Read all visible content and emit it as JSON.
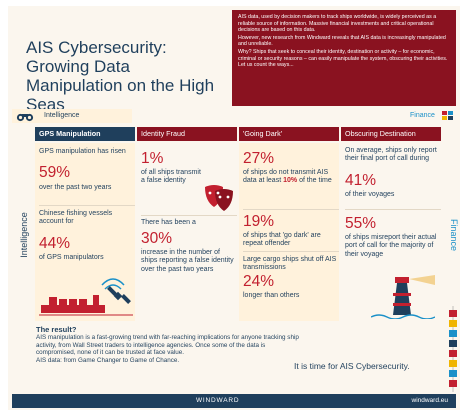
{
  "header": {
    "title": "AIS Cybersecurity: Growing Data Manipulation on the High Seas",
    "intro_1": "AIS data, used by decision makers to track ships worldwide, is widely perceived as a reliable source of information. Massive financial investments and critical operational decisions are based on this data.",
    "intro_2": "However, new research from Windward reveals that AIS data is increasingly manipulated and unreliable.",
    "intro_3": "Why? Ships that seek to conceal their identity, destination or activity – for economic, criminal or security reasons – can easily manipulate the system, obscuring their activities. Let us count the ways..."
  },
  "categories": {
    "left": "Intelligence",
    "right": "Finance"
  },
  "columns": {
    "gps": {
      "title": "GPS Manipulation",
      "s1_text": "GPS manipulation has risen",
      "s1_value": "59%",
      "s1_after": "over the past two years",
      "s2_text": "Chinese fishing vessels account for",
      "s2_value": "44%",
      "s2_after": "of GPS manipulators"
    },
    "identity": {
      "title": "Identity Fraud",
      "s1_value": "1%",
      "s1_after": "of all ships transmit a false identity",
      "s2_text": "There has been a",
      "s2_value": "30%",
      "s2_after": "increase in the number of ships reporting a false identity over the past two years"
    },
    "dark": {
      "title": "'Going Dark'",
      "s1_value": "27%",
      "s1_after_a": "of ships do not transmit AIS data at least",
      "s1_highlight": "10%",
      "s1_after_b": "of the time",
      "s2_value": "19%",
      "s2_after": "of ships that 'go dark' are repeat offender",
      "s3_text": "Large cargo ships shut off AIS transmissions",
      "s3_value": "24%",
      "s3_after": "longer than others"
    },
    "destination": {
      "title": "Obscuring Destination",
      "s1_text": "On average, ships only report their final port of call during",
      "s1_value": "41%",
      "s1_after": "of their voyages",
      "s2_value": "55%",
      "s2_after": "of ships misreport their actual port of call for the majority of their voyage"
    }
  },
  "sides": {
    "left": "Intelligence",
    "right": "Finance"
  },
  "result": {
    "question": "The result?",
    "text_1": "AIS manipulation is a fast-growing trend with far-reaching implications for anyone tracking ship activity, from Wall Street traders to intelligence agencies. Once some of the data is compromised, none of it can be trusted at face value.",
    "text_2": "AIS data: from Game Changer to Game of Chance.",
    "cta": "It is time for AIS Cybersecurity."
  },
  "footer": {
    "brand": "WINDWARD",
    "url": "windward.eu"
  },
  "colors": {
    "navy": "#1f3f5c",
    "maroon": "#8a1220",
    "red": "#c2202f",
    "cream": "#fbf6ee",
    "blue": "#1a90c8"
  }
}
